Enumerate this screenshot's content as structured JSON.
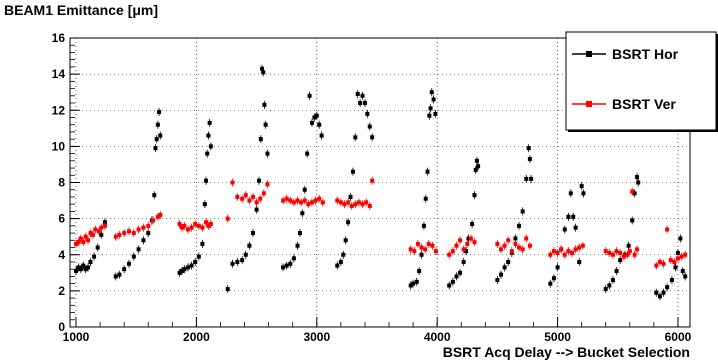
{
  "chart_data": {
    "type": "scatter",
    "title": "BEAM1 Emittance [μm]",
    "xlabel": "BSRT Acq Delay --> Bucket Selection",
    "ylabel": "",
    "xlim": [
      950,
      6100
    ],
    "ylim": [
      0,
      16
    ],
    "x_ticks": [
      "1000",
      "2000",
      "3000",
      "4000",
      "5000",
      "6000"
    ],
    "y_ticks": [
      "0",
      "2",
      "4",
      "6",
      "8",
      "10",
      "12",
      "14",
      "16"
    ],
    "grid": true,
    "legend_position": "top-right",
    "series": [
      {
        "name": "BSRT Hor",
        "color": "#000000",
        "marker": "square",
        "points": [
          [
            1000,
            3.1
          ],
          [
            1020,
            3.3
          ],
          [
            1040,
            3.2
          ],
          [
            1060,
            3.4
          ],
          [
            1080,
            3.2
          ],
          [
            1100,
            3.3
          ],
          [
            1120,
            3.6
          ],
          [
            1150,
            3.9
          ],
          [
            1180,
            4.4
          ],
          [
            1210,
            5.1
          ],
          [
            1240,
            5.8
          ],
          [
            1330,
            2.8
          ],
          [
            1360,
            2.9
          ],
          [
            1400,
            3.2
          ],
          [
            1440,
            3.5
          ],
          [
            1480,
            3.9
          ],
          [
            1520,
            4.3
          ],
          [
            1560,
            4.8
          ],
          [
            1600,
            5.2
          ],
          [
            1630,
            5.9
          ],
          [
            1650,
            7.3
          ],
          [
            1660,
            9.9
          ],
          [
            1670,
            10.4
          ],
          [
            1680,
            11.2
          ],
          [
            1690,
            11.9
          ],
          [
            1700,
            10.6
          ],
          [
            1860,
            3.0
          ],
          [
            1880,
            3.1
          ],
          [
            1900,
            3.2
          ],
          [
            1930,
            3.3
          ],
          [
            1960,
            3.4
          ],
          [
            1990,
            3.6
          ],
          [
            2020,
            3.9
          ],
          [
            2050,
            4.6
          ],
          [
            2070,
            6.8
          ],
          [
            2080,
            8.1
          ],
          [
            2090,
            9.6
          ],
          [
            2100,
            10.6
          ],
          [
            2110,
            11.3
          ],
          [
            2120,
            10.0
          ],
          [
            2260,
            2.1
          ],
          [
            2300,
            3.5
          ],
          [
            2340,
            3.6
          ],
          [
            2380,
            3.7
          ],
          [
            2410,
            4.0
          ],
          [
            2440,
            4.5
          ],
          [
            2470,
            5.2
          ],
          [
            2500,
            6.5
          ],
          [
            2520,
            8.1
          ],
          [
            2535,
            10.4
          ],
          [
            2545,
            14.3
          ],
          [
            2555,
            14.1
          ],
          [
            2565,
            12.3
          ],
          [
            2575,
            11.2
          ],
          [
            2590,
            9.6
          ],
          [
            2720,
            3.3
          ],
          [
            2750,
            3.4
          ],
          [
            2780,
            3.5
          ],
          [
            2810,
            3.8
          ],
          [
            2840,
            4.5
          ],
          [
            2860,
            5.2
          ],
          [
            2880,
            6.3
          ],
          [
            2900,
            7.6
          ],
          [
            2920,
            9.6
          ],
          [
            2940,
            12.8
          ],
          [
            2960,
            11.3
          ],
          [
            2980,
            11.6
          ],
          [
            3000,
            11.7
          ],
          [
            3020,
            11.2
          ],
          [
            3040,
            10.6
          ],
          [
            3170,
            3.4
          ],
          [
            3200,
            3.6
          ],
          [
            3220,
            4.0
          ],
          [
            3240,
            4.8
          ],
          [
            3260,
            5.8
          ],
          [
            3280,
            7.2
          ],
          [
            3300,
            8.6
          ],
          [
            3320,
            10.5
          ],
          [
            3340,
            12.9
          ],
          [
            3360,
            12.4
          ],
          [
            3380,
            12.8
          ],
          [
            3400,
            12.4
          ],
          [
            3420,
            11.8
          ],
          [
            3440,
            11.1
          ],
          [
            3460,
            10.5
          ],
          [
            3780,
            2.3
          ],
          [
            3800,
            2.4
          ],
          [
            3830,
            2.5
          ],
          [
            3850,
            3.1
          ],
          [
            3870,
            4.0
          ],
          [
            3890,
            5.6
          ],
          [
            3905,
            7.1
          ],
          [
            3920,
            8.6
          ],
          [
            3935,
            11.7
          ],
          [
            3945,
            12.1
          ],
          [
            3955,
            13.0
          ],
          [
            3970,
            12.6
          ],
          [
            3985,
            11.8
          ],
          [
            4100,
            2.3
          ],
          [
            4130,
            2.5
          ],
          [
            4160,
            2.8
          ],
          [
            4190,
            3.0
          ],
          [
            4220,
            3.6
          ],
          [
            4240,
            4.2
          ],
          [
            4260,
            4.9
          ],
          [
            4290,
            5.7
          ],
          [
            4310,
            7.3
          ],
          [
            4320,
            8.7
          ],
          [
            4330,
            9.2
          ],
          [
            4340,
            8.9
          ],
          [
            4500,
            2.6
          ],
          [
            4530,
            2.9
          ],
          [
            4560,
            3.3
          ],
          [
            4590,
            3.6
          ],
          [
            4620,
            4.1
          ],
          [
            4650,
            4.9
          ],
          [
            4680,
            5.6
          ],
          [
            4710,
            6.4
          ],
          [
            4740,
            8.2
          ],
          [
            4760,
            9.9
          ],
          [
            4770,
            9.3
          ],
          [
            4780,
            8.2
          ],
          [
            4940,
            2.4
          ],
          [
            4970,
            2.7
          ],
          [
            5000,
            3.3
          ],
          [
            5030,
            4.3
          ],
          [
            5060,
            5.4
          ],
          [
            5090,
            6.1
          ],
          [
            5110,
            7.4
          ],
          [
            5130,
            6.1
          ],
          [
            5150,
            5.5
          ],
          [
            5180,
            3.6
          ],
          [
            5200,
            7.8
          ],
          [
            5215,
            7.4
          ],
          [
            5400,
            2.1
          ],
          [
            5430,
            2.3
          ],
          [
            5460,
            2.6
          ],
          [
            5490,
            3.1
          ],
          [
            5520,
            3.7
          ],
          [
            5560,
            4.0
          ],
          [
            5590,
            4.5
          ],
          [
            5620,
            5.9
          ],
          [
            5640,
            7.4
          ],
          [
            5660,
            8.3
          ],
          [
            5670,
            8.0
          ],
          [
            5820,
            1.9
          ],
          [
            5850,
            1.7
          ],
          [
            5880,
            1.9
          ],
          [
            5910,
            2.2
          ],
          [
            5950,
            2.6
          ],
          [
            5980,
            3.3
          ],
          [
            6000,
            4.1
          ],
          [
            6020,
            4.9
          ],
          [
            6040,
            3.1
          ],
          [
            6060,
            2.8
          ]
        ]
      },
      {
        "name": "BSRT Ver",
        "color": "#ff0000",
        "marker": "square",
        "points": [
          [
            1000,
            4.6
          ],
          [
            1020,
            4.7
          ],
          [
            1040,
            4.9
          ],
          [
            1060,
            4.7
          ],
          [
            1080,
            5.0
          ],
          [
            1100,
            4.8
          ],
          [
            1120,
            5.2
          ],
          [
            1140,
            5.1
          ],
          [
            1160,
            5.4
          ],
          [
            1190,
            5.3
          ],
          [
            1210,
            5.5
          ],
          [
            1240,
            5.6
          ],
          [
            1330,
            5.0
          ],
          [
            1360,
            5.1
          ],
          [
            1400,
            5.2
          ],
          [
            1440,
            5.3
          ],
          [
            1480,
            5.2
          ],
          [
            1520,
            5.4
          ],
          [
            1560,
            5.5
          ],
          [
            1600,
            5.6
          ],
          [
            1640,
            5.9
          ],
          [
            1680,
            6.1
          ],
          [
            1700,
            6.2
          ],
          [
            1860,
            5.7
          ],
          [
            1880,
            5.5
          ],
          [
            1900,
            5.6
          ],
          [
            1930,
            5.4
          ],
          [
            1960,
            5.5
          ],
          [
            1990,
            5.7
          ],
          [
            2020,
            5.6
          ],
          [
            2050,
            5.5
          ],
          [
            2080,
            5.8
          ],
          [
            2100,
            5.6
          ],
          [
            2120,
            5.7
          ],
          [
            2260,
            6.0
          ],
          [
            2300,
            8.0
          ],
          [
            2340,
            7.2
          ],
          [
            2380,
            7.1
          ],
          [
            2410,
            7.3
          ],
          [
            2440,
            7.0
          ],
          [
            2470,
            7.2
          ],
          [
            2500,
            6.9
          ],
          [
            2530,
            7.1
          ],
          [
            2560,
            7.4
          ],
          [
            2590,
            7.9
          ],
          [
            2720,
            7.0
          ],
          [
            2750,
            7.1
          ],
          [
            2780,
            7.0
          ],
          [
            2810,
            6.9
          ],
          [
            2840,
            7.0
          ],
          [
            2870,
            6.9
          ],
          [
            2900,
            7.0
          ],
          [
            2930,
            6.8
          ],
          [
            2960,
            6.9
          ],
          [
            2990,
            7.0
          ],
          [
            3020,
            7.1
          ],
          [
            3050,
            6.9
          ],
          [
            3170,
            7.0
          ],
          [
            3200,
            6.9
          ],
          [
            3230,
            6.8
          ],
          [
            3260,
            6.9
          ],
          [
            3290,
            6.7
          ],
          [
            3320,
            6.8
          ],
          [
            3350,
            6.9
          ],
          [
            3380,
            6.8
          ],
          [
            3410,
            6.9
          ],
          [
            3440,
            6.7
          ],
          [
            3460,
            8.1
          ],
          [
            3780,
            4.3
          ],
          [
            3810,
            4.2
          ],
          [
            3840,
            4.6
          ],
          [
            3870,
            4.4
          ],
          [
            3900,
            4.3
          ],
          [
            3930,
            4.6
          ],
          [
            3960,
            4.5
          ],
          [
            3990,
            4.2
          ],
          [
            4100,
            4.0
          ],
          [
            4130,
            4.2
          ],
          [
            4160,
            4.5
          ],
          [
            4190,
            4.8
          ],
          [
            4220,
            4.3
          ],
          [
            4250,
            4.6
          ],
          [
            4280,
            4.9
          ],
          [
            4310,
            4.7
          ],
          [
            4500,
            4.6
          ],
          [
            4530,
            4.3
          ],
          [
            4560,
            4.5
          ],
          [
            4590,
            4.8
          ],
          [
            4620,
            4.2
          ],
          [
            4650,
            4.6
          ],
          [
            4680,
            4.4
          ],
          [
            4710,
            4.3
          ],
          [
            4740,
            4.9
          ],
          [
            4770,
            4.5
          ],
          [
            4940,
            4.0
          ],
          [
            4970,
            4.2
          ],
          [
            5000,
            4.1
          ],
          [
            5030,
            4.3
          ],
          [
            5060,
            4.0
          ],
          [
            5090,
            4.2
          ],
          [
            5120,
            4.1
          ],
          [
            5150,
            4.3
          ],
          [
            5180,
            4.4
          ],
          [
            5210,
            4.5
          ],
          [
            5400,
            4.2
          ],
          [
            5430,
            4.1
          ],
          [
            5460,
            4.0
          ],
          [
            5490,
            4.2
          ],
          [
            5520,
            4.1
          ],
          [
            5550,
            3.9
          ],
          [
            5580,
            4.0
          ],
          [
            5600,
            4.2
          ],
          [
            5620,
            7.5
          ],
          [
            5640,
            4.0
          ],
          [
            5660,
            4.3
          ],
          [
            5820,
            3.4
          ],
          [
            5850,
            3.6
          ],
          [
            5880,
            3.5
          ],
          [
            5910,
            5.4
          ],
          [
            5940,
            3.7
          ],
          [
            5970,
            3.6
          ],
          [
            6000,
            3.8
          ],
          [
            6030,
            3.9
          ],
          [
            6060,
            4.0
          ]
        ]
      }
    ]
  }
}
